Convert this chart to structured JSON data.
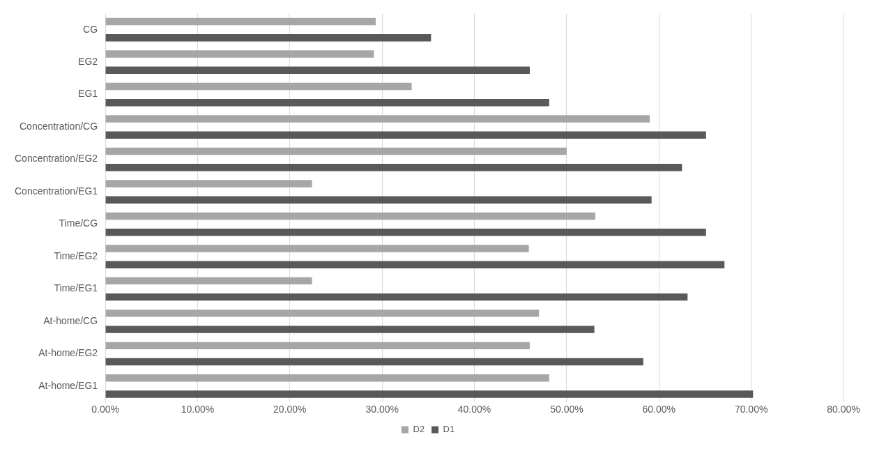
{
  "chart_data": {
    "type": "bar",
    "orientation": "horizontal",
    "categories": [
      "CG",
      "EG2",
      "EG1",
      "Concentration/CG",
      "Concentration/EG2",
      "Concentration/EG1",
      "Time/CG",
      "Time/EG2",
      "Time/EG1",
      "At-home/CG",
      "At-home/EG2",
      "At-home/EG1"
    ],
    "series": [
      {
        "name": "D2",
        "color": "#a6a6a6",
        "values": [
          29.3,
          29.1,
          33.2,
          59.0,
          50.0,
          22.4,
          53.1,
          45.9,
          22.4,
          47.0,
          46.0,
          48.1
        ]
      },
      {
        "name": "D1",
        "color": "#595959",
        "values": [
          35.3,
          46.0,
          48.1,
          65.1,
          62.5,
          59.2,
          65.1,
          67.1,
          63.1,
          53.0,
          58.3,
          70.2
        ]
      }
    ],
    "xlim": [
      0,
      80
    ],
    "xticks": [
      {
        "value": 0,
        "label": "0.00%"
      },
      {
        "value": 10,
        "label": "10.00%"
      },
      {
        "value": 20,
        "label": "20.00%"
      },
      {
        "value": 30,
        "label": "30.00%"
      },
      {
        "value": 40,
        "label": "40.00%"
      },
      {
        "value": 50,
        "label": "50.00%"
      },
      {
        "value": 60,
        "label": "60.00%"
      },
      {
        "value": 70,
        "label": "70.00%"
      },
      {
        "value": 80,
        "label": "80.00%"
      }
    ],
    "grid": "x",
    "legend": "bottom"
  }
}
